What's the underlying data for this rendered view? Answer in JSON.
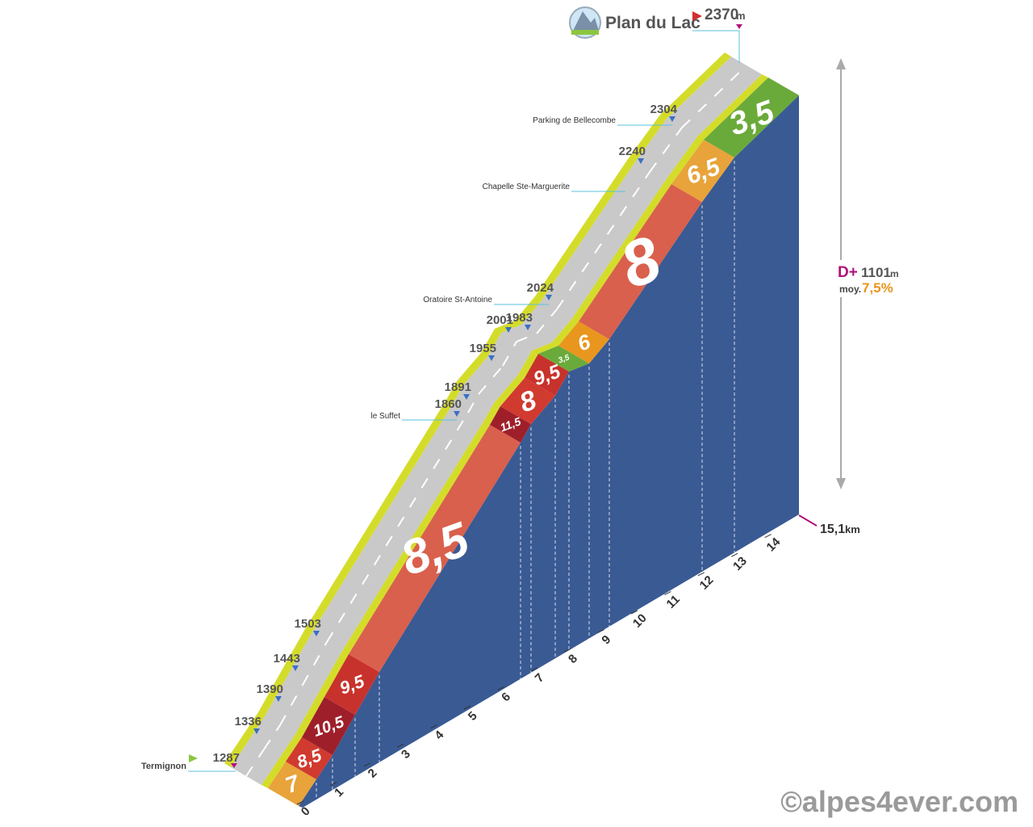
{
  "summit": {
    "name": "Plan du Lac",
    "altitude": 2370,
    "unit": "m"
  },
  "start": {
    "name": "Termignon",
    "altitude": 1287
  },
  "altitudes": [
    1336,
    1390,
    1443,
    1503,
    1860,
    1891,
    1955,
    2001,
    1983,
    2024,
    2240,
    2304
  ],
  "places": [
    "le Suffet",
    "Oratoire St-Antoine",
    "Chapelle Ste-Marguerite",
    "Parking de Bellecombe"
  ],
  "gradients": [
    "7",
    "8,5",
    "10,5",
    "9,5",
    "8,5",
    "11,5",
    "8",
    "9,5",
    "3,5",
    "6",
    "8",
    "6,5",
    "3,5"
  ],
  "km_ticks": [
    0,
    1,
    2,
    3,
    4,
    5,
    6,
    7,
    8,
    9,
    10,
    11,
    12,
    13,
    14
  ],
  "distance": {
    "value": "15,1",
    "unit": "km"
  },
  "elevation_gain": {
    "label": "D+",
    "value": 1101,
    "unit": "m"
  },
  "average": {
    "label": "moy.",
    "value": "7,5%"
  },
  "credit": "©alpes4ever.com"
}
